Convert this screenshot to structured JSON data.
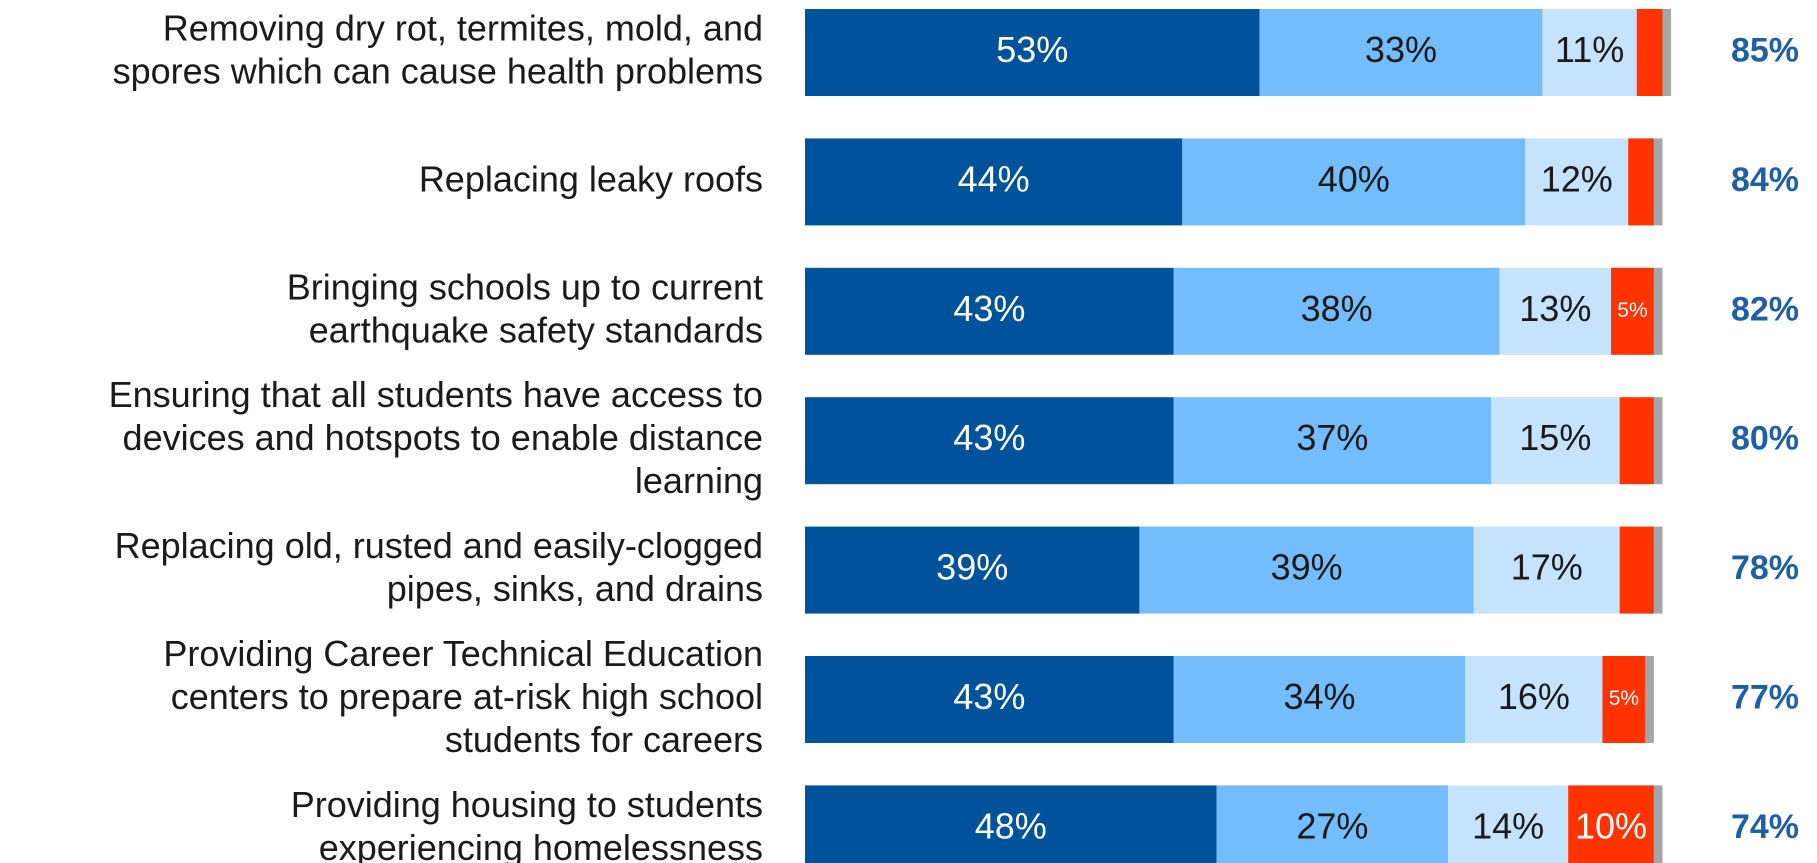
{
  "chart_data": {
    "type": "stacked-bar-horizontal",
    "categories": [
      [
        "Removing dry rot, termites, mold, and",
        "spores which can cause health problems"
      ],
      [
        "Replacing leaky roofs"
      ],
      [
        "Bringing schools up to current",
        "earthquake safety standards"
      ],
      [
        "Ensuring that all students have access to",
        "devices and hotspots to enable distance",
        "learning"
      ],
      [
        "Replacing old, rusted and easily-clogged",
        "pipes, sinks, and drains"
      ],
      [
        "Providing Career Technical Education",
        "centers to prepare at-risk high school",
        "students for careers"
      ],
      [
        "Providing housing to students",
        "experiencing homelessness"
      ]
    ],
    "series": [
      {
        "color": "#00539b",
        "label_color": "#ffffff",
        "values": [
          53,
          44,
          43,
          43,
          39,
          43,
          48
        ],
        "value_labels": [
          "53%",
          "44%",
          "43%",
          "43%",
          "39%",
          "43%",
          "48%"
        ]
      },
      {
        "color": "#74bdfc",
        "label_color": "#1a1a1a",
        "values": [
          33,
          40,
          38,
          37,
          39,
          34,
          27
        ],
        "value_labels": [
          "33%",
          "40%",
          "38%",
          "37%",
          "39%",
          "34%",
          "27%"
        ]
      },
      {
        "color": "#c5e3fd",
        "label_color": "#1a1a1a",
        "values": [
          11,
          12,
          13,
          15,
          17,
          16,
          14
        ],
        "value_labels": [
          "11%",
          "12%",
          "13%",
          "15%",
          "17%",
          "16%",
          "14%"
        ]
      },
      {
        "color": "#ff3300",
        "label_color": "#ffffff",
        "values": [
          3,
          3,
          5,
          4,
          4,
          5,
          10
        ],
        "value_labels": [
          null,
          null,
          "5%",
          null,
          null,
          "5%",
          "10%"
        ]
      },
      {
        "color": "#a6a6a6",
        "label_color": "#ffffff",
        "values": [
          1,
          1,
          1,
          1,
          1,
          1,
          1
        ],
        "value_labels": [
          null,
          null,
          null,
          null,
          null,
          null,
          null
        ]
      }
    ],
    "totals": {
      "color": "#1f5fa5",
      "values": [
        85,
        84,
        82,
        80,
        78,
        77,
        74
      ],
      "value_labels": [
        "85%",
        "84%",
        "82%",
        "80%",
        "78%",
        "77%",
        "74%"
      ]
    },
    "xlim": [
      0,
      100
    ]
  }
}
